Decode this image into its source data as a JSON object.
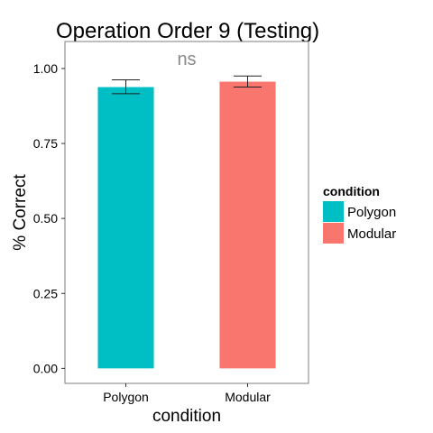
{
  "chart_data": {
    "type": "bar",
    "title": "Operation Order 9 (Testing)",
    "xlabel": "condition",
    "ylabel": "% Correct",
    "categories": [
      "Polygon",
      "Modular"
    ],
    "values": [
      0.938,
      0.956
    ],
    "error_low": [
      0.916,
      0.938
    ],
    "error_high": [
      0.962,
      0.975
    ],
    "colors": [
      "#00BFC4",
      "#F8766D"
    ],
    "ylim": [
      -0.05,
      1.09
    ],
    "yticks": [
      0.0,
      0.25,
      0.5,
      0.75,
      1.0
    ],
    "ytick_labels": [
      "0.00",
      "0.25",
      "0.50",
      "0.75",
      "1.00"
    ],
    "grid": false,
    "annotation": "ns",
    "legend": {
      "title": "condition",
      "placement": "right",
      "entries": [
        {
          "label": "Polygon",
          "color": "#00BFC4"
        },
        {
          "label": "Modular",
          "color": "#F8766D"
        }
      ]
    }
  }
}
